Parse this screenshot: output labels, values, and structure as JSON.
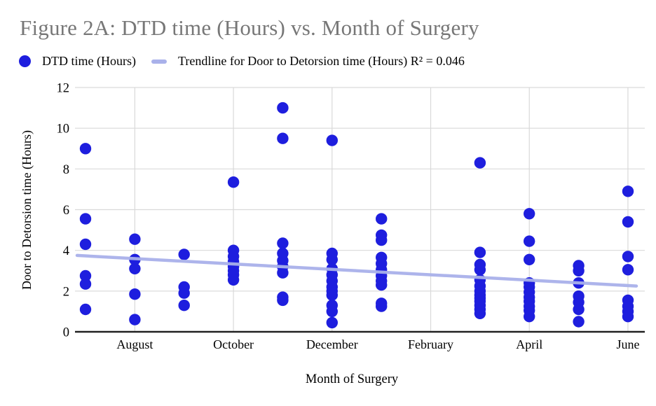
{
  "colors": {
    "point": "#1E1EDE",
    "trendline": "#A9B1EA",
    "title_text": "#777777",
    "grid": "#D9D9D9",
    "axis": "#212121",
    "label_text": "#000000"
  },
  "chart_data": {
    "type": "scatter",
    "title": "Figure 2A: DTD time (Hours) vs. Month of Surgery",
    "xlabel": "Month of Surgery",
    "ylabel": "Door to Detorsion time (Hours)",
    "ylim": [
      0,
      12
    ],
    "yticks": [
      0,
      2,
      4,
      6,
      8,
      10,
      12
    ],
    "grid": true,
    "legend_position": "top-left",
    "months": [
      "July",
      "August",
      "September",
      "October",
      "November",
      "December",
      "January",
      "February",
      "March",
      "April",
      "May",
      "June"
    ],
    "xtick_labeled_months": [
      "August",
      "October",
      "December",
      "February",
      "April",
      "June"
    ],
    "series": [
      {
        "name": "DTD time (Hours)",
        "color": "#1E1EDE",
        "points": [
          {
            "month": "July",
            "values": [
              9.0,
              5.55,
              4.3,
              2.75,
              2.35,
              1.1
            ]
          },
          {
            "month": "August",
            "values": [
              4.55,
              3.55,
              3.1,
              1.85,
              0.6
            ]
          },
          {
            "month": "September",
            "values": [
              3.8,
              2.2,
              1.9,
              1.3
            ]
          },
          {
            "month": "October",
            "values": [
              7.35,
              4.0,
              3.7,
              3.45,
              3.2,
              3.0,
              2.8,
              2.55
            ]
          },
          {
            "month": "November",
            "values": [
              11.0,
              9.5,
              4.35,
              3.85,
              3.5,
              3.2,
              2.9,
              1.7,
              1.55
            ]
          },
          {
            "month": "December",
            "values": [
              9.4,
              3.85,
              3.55,
              3.1,
              2.8,
              2.5,
              2.2,
              2.0,
              1.8,
              1.3,
              1.0,
              0.45
            ]
          },
          {
            "month": "January",
            "values": [
              5.55,
              4.75,
              4.5,
              3.65,
              3.35,
              3.05,
              2.75,
              2.5,
              2.3,
              1.4,
              1.25
            ]
          },
          {
            "month": "February",
            "values": []
          },
          {
            "month": "March",
            "values": [
              8.3,
              3.9,
              3.3,
              3.05,
              2.55,
              2.25,
              2.0,
              1.8,
              1.65,
              1.5,
              1.3,
              1.1,
              0.9
            ]
          },
          {
            "month": "April",
            "values": [
              5.8,
              4.45,
              3.55,
              2.4,
              2.2,
              1.95,
              1.7,
              1.5,
              1.25,
              1.05,
              0.75
            ]
          },
          {
            "month": "May",
            "values": [
              3.25,
              3.0,
              2.4,
              1.75,
              1.45,
              1.1,
              0.5
            ]
          },
          {
            "month": "June",
            "values": [
              6.9,
              5.4,
              3.7,
              3.05,
              1.55,
              1.25,
              1.0,
              0.75
            ]
          }
        ]
      }
    ],
    "trendline": {
      "label": "Trendline for Door to Detorsion time (Hours) R² = 0.046",
      "r_squared": 0.046,
      "color": "#A9B1EA",
      "y_at_plot_left": 3.75,
      "y_at_plot_right": 2.25
    }
  }
}
